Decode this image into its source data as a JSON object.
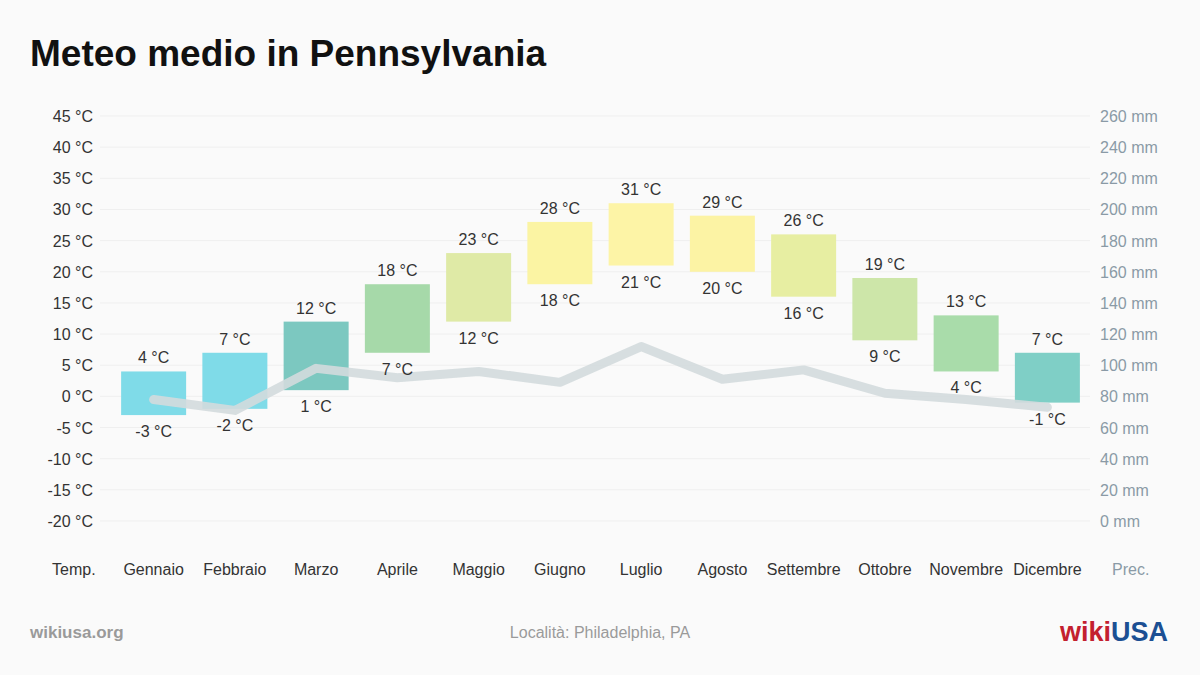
{
  "chart_data": {
    "type": "range_bar",
    "title": "Meteo medio in Pennsylvania",
    "subtitle": "Località: Philadelphia, PA",
    "source": "wikiusa.org",
    "logo": [
      "wiki",
      "USA"
    ],
    "y_label": "Temp.",
    "y2_label": "Prec.",
    "categories": [
      "Gennaio",
      "Febbraio",
      "Marzo",
      "Aprile",
      "Maggio",
      "Giugno",
      "Luglio",
      "Agosto",
      "Settembre",
      "Ottobre",
      "Novembre",
      "Dicembre"
    ],
    "ylim": [
      -20,
      45
    ],
    "yticks": [
      {
        "value": -20,
        "label": "-20 °C"
      },
      {
        "value": -15,
        "label": "-15 °C"
      },
      {
        "value": -10,
        "label": "-10 °C"
      },
      {
        "value": -5,
        "label": "-5 °C"
      },
      {
        "value": 0,
        "label": "0 °C"
      },
      {
        "value": 5,
        "label": "5 °C"
      },
      {
        "value": 10,
        "label": "10 °C"
      },
      {
        "value": 15,
        "label": "15 °C"
      },
      {
        "value": 20,
        "label": "20 °C"
      },
      {
        "value": 25,
        "label": "25 °C"
      },
      {
        "value": 30,
        "label": "30 °C"
      },
      {
        "value": 35,
        "label": "35 °C"
      },
      {
        "value": 40,
        "label": "40 °C"
      },
      {
        "value": 45,
        "label": "45 °C"
      }
    ],
    "y2lim": [
      0,
      260
    ],
    "y2ticks": [
      {
        "value": 0,
        "label": "0 mm"
      },
      {
        "value": 20,
        "label": "20 mm"
      },
      {
        "value": 40,
        "label": "40 mm"
      },
      {
        "value": 60,
        "label": "60 mm"
      },
      {
        "value": 80,
        "label": "80 mm"
      },
      {
        "value": 100,
        "label": "100 mm"
      },
      {
        "value": 120,
        "label": "120 mm"
      },
      {
        "value": 140,
        "label": "140 mm"
      },
      {
        "value": 160,
        "label": "160 mm"
      },
      {
        "value": 180,
        "label": "180 mm"
      },
      {
        "value": 200,
        "label": "200 mm"
      },
      {
        "value": 220,
        "label": "220 mm"
      },
      {
        "value": 240,
        "label": "240 mm"
      },
      {
        "value": 260,
        "label": "260 mm"
      }
    ],
    "grid": true,
    "data_labels": true,
    "series": [
      {
        "type": "range_bar",
        "values": [
          4,
          7,
          12,
          18,
          23,
          28,
          31,
          29,
          26,
          19,
          13,
          7
        ],
        "value_labels": [
          "4 °C",
          "7 °C",
          "12 °C",
          "18 °C",
          "23 °C",
          "28 °C",
          "31 °C",
          "29 °C",
          "26 °C",
          "19 °C",
          "13 °C",
          "7 °C"
        ],
        "low": [
          -3,
          -2,
          1,
          7,
          12,
          18,
          21,
          20,
          16,
          9,
          4,
          -1
        ],
        "low_labels": [
          "-3 °C",
          "-2 °C",
          "1 °C",
          "7 °C",
          "12 °C",
          "18 °C",
          "21 °C",
          "20 °C",
          "16 °C",
          "9 °C",
          "4 °C",
          "-1 °C"
        ],
        "colors": [
          "#7fdbe8",
          "#7fdbe8",
          "#7cc8c0",
          "#a6d9a9",
          "#dfeaa6",
          "#fbf4a3",
          "#fdf4a6",
          "#fcf3a4",
          "#e7eea2",
          "#cde6a9",
          "#a9dcaa",
          "#7fcfc6"
        ]
      },
      {
        "type": "line",
        "axis": "y2",
        "color": "#d3dadd",
        "values": [
          78,
          71,
          98,
          92,
          96,
          89,
          112,
          91,
          97,
          82,
          78,
          73
        ]
      }
    ]
  }
}
